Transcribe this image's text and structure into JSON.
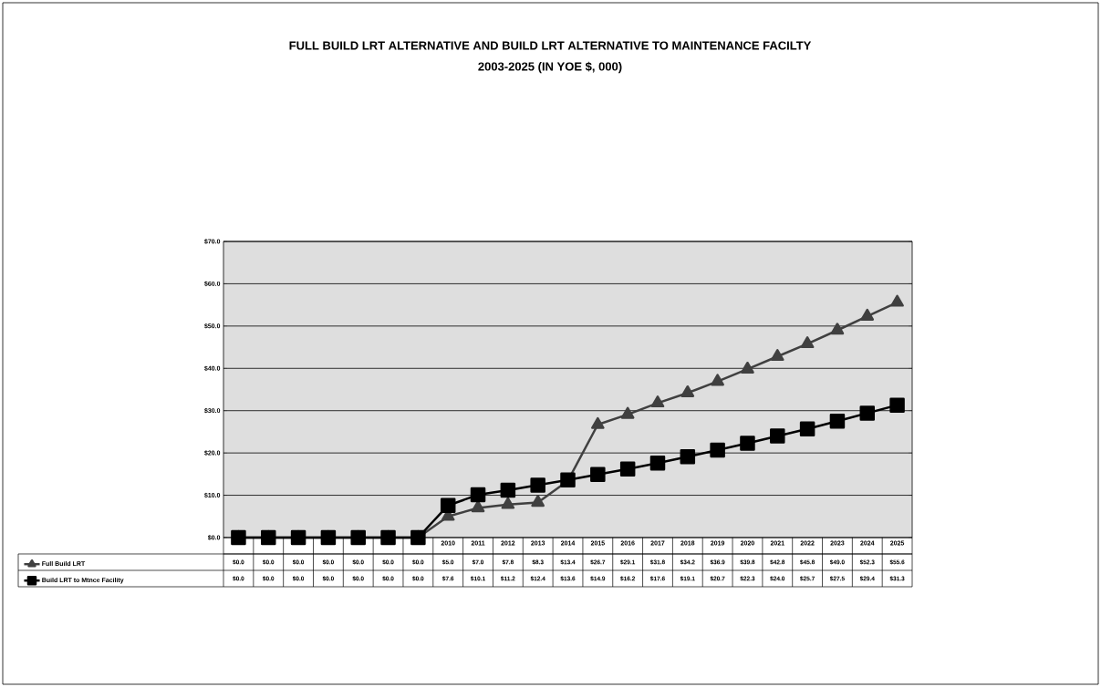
{
  "chart_data": {
    "type": "line",
    "title": "FULL BUILD LRT ALTERNATIVE AND BUILD LRT ALTERNATIVE TO MAINTENANCE FACILTY",
    "subtitle": "2003-2025 (IN YOE $, 000)",
    "categories": [
      null,
      null,
      null,
      null,
      null,
      null,
      null,
      "2010",
      "2011",
      "2012",
      "2013",
      "2014",
      "2015",
      "2016",
      "2017",
      "2018",
      "2019",
      "2020",
      "2021",
      "2022",
      "2023",
      "2024",
      "2025"
    ],
    "series": [
      {
        "name": "Full Build LRT",
        "color": "#404040",
        "marker": "triangle",
        "values": [
          0.0,
          0.0,
          0.0,
          0.0,
          0.0,
          0.0,
          0.0,
          5.0,
          7.0,
          7.8,
          8.3,
          13.4,
          26.7,
          29.1,
          31.8,
          34.2,
          36.9,
          39.8,
          42.8,
          45.8,
          49.0,
          52.3,
          55.6
        ],
        "value_labels": [
          "$0.0",
          "$0.0",
          "$0.0",
          "$0.0",
          "$0.0",
          "$0.0",
          "$0.0",
          "$5.0",
          "$7.0",
          "$7.8",
          "$8.3",
          "$13.4",
          "$26.7",
          "$29.1",
          "$31.8",
          "$34.2",
          "$36.9",
          "$39.8",
          "$42.8",
          "$45.8",
          "$49.0",
          "$52.3",
          "$55.6"
        ]
      },
      {
        "name": "Build LRT to Mtnce Facility",
        "color": "#000000",
        "marker": "square",
        "values": [
          0.0,
          0.0,
          0.0,
          0.0,
          0.0,
          0.0,
          0.0,
          7.6,
          10.1,
          11.2,
          12.4,
          13.6,
          14.9,
          16.2,
          17.6,
          19.1,
          20.7,
          22.3,
          24.0,
          25.7,
          27.5,
          29.4,
          31.3
        ],
        "value_labels": [
          "$0.0",
          "$0.0",
          "$0.0",
          "$0.0",
          "$0.0",
          "$0.0",
          "$0.0",
          "$7.6",
          "$10.1",
          "$11.2",
          "$12.4",
          "$13.6",
          "$14.9",
          "$16.2",
          "$17.6",
          "$19.1",
          "$20.7",
          "$22.3",
          "$24.0",
          "$25.7",
          "$27.5",
          "$29.4",
          "$31.3"
        ]
      }
    ],
    "ylim": [
      0,
      70
    ],
    "yticks": [
      {
        "value": 0,
        "label": "$0.0"
      },
      {
        "value": 10,
        "label": "$10.0"
      },
      {
        "value": 20,
        "label": "$20.0"
      },
      {
        "value": 30,
        "label": "$30.0"
      },
      {
        "value": 40,
        "label": "$40.0"
      },
      {
        "value": 50,
        "label": "$50.0"
      },
      {
        "value": 60,
        "label": "$60.0"
      },
      {
        "value": 70,
        "label": "$70.0"
      }
    ],
    "grid": "y",
    "legend": "bottom left",
    "line_style": "solid"
  }
}
